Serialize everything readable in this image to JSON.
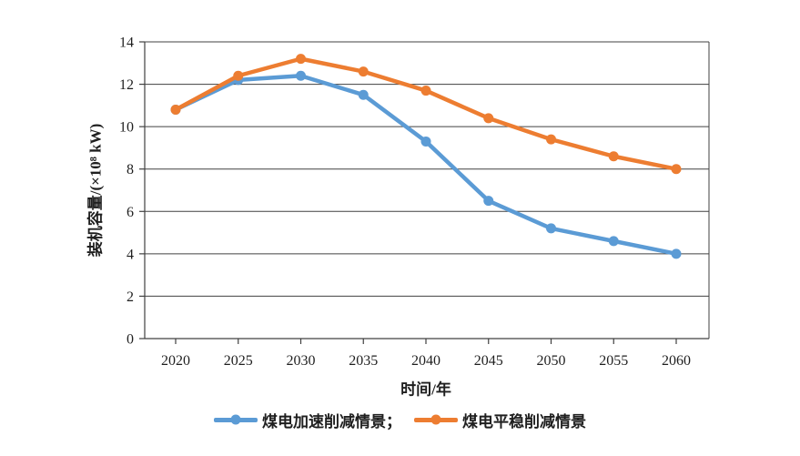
{
  "chart_data": {
    "type": "line",
    "title": "",
    "x": [
      "2020",
      "2025",
      "2030",
      "2035",
      "2040",
      "2045",
      "2050",
      "2055",
      "2060"
    ],
    "series": [
      {
        "name": "煤电加速削减情景",
        "color": "#5B9BD5",
        "values": [
          10.8,
          12.2,
          12.4,
          11.5,
          9.3,
          6.5,
          5.2,
          4.6,
          4.0
        ]
      },
      {
        "name": "煤电平稳削减情景",
        "color": "#ED7D31",
        "values": [
          10.8,
          12.4,
          13.2,
          12.6,
          11.7,
          10.4,
          9.4,
          8.6,
          8.0
        ]
      }
    ],
    "xlabel": "时间/年",
    "ylabel": "装机容量/(×10⁸ kW)",
    "ylim": [
      0,
      14
    ],
    "yticks": [
      0,
      2,
      4,
      6,
      8,
      10,
      12,
      14
    ],
    "grid": "horizontal",
    "axis_color": "#404040",
    "tick_label_color": "#1f1f1f",
    "legend_position": "bottom",
    "legend_labels": [
      "煤电加速削减情景；",
      "煤电平稳削减情景"
    ]
  }
}
